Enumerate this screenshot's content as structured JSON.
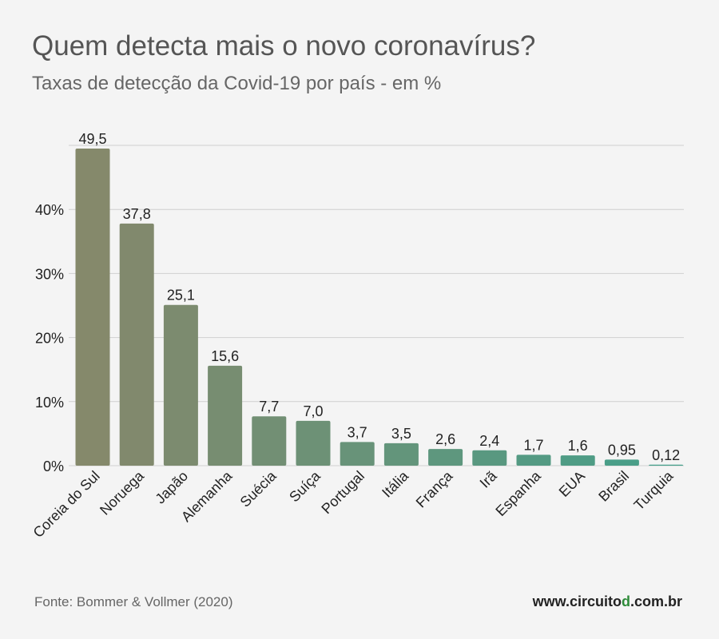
{
  "header": {
    "title": "Quem detecta mais o novo coronavírus?",
    "subtitle": "Taxas de detecção da Covid-19 por país - em %"
  },
  "footer": {
    "source": "Fonte: Bommer & Vollmer (2020)",
    "site_prefix": "www.circuito",
    "site_accent": "d",
    "site_suffix": ".com.br",
    "accent_color": "#2e8b3a"
  },
  "chart_data": {
    "type": "bar",
    "title": "Quem detecta mais o novo coronavírus?",
    "subtitle": "Taxas de detecção da Covid-19 por país - em %",
    "xlabel": "",
    "ylabel": "",
    "ylim": [
      0,
      50
    ],
    "yticks": [
      0,
      10,
      20,
      30,
      40,
      50
    ],
    "ytick_labels": [
      "0%",
      "10%",
      "20%",
      "30%",
      "40%",
      ""
    ],
    "grid": true,
    "categories": [
      "Coreia do Sul",
      "Noruega",
      "Japão",
      "Alemanha",
      "Suécia",
      "Suíça",
      "Portugal",
      "Itália",
      "França",
      "Irã",
      "Espanha",
      "EUA",
      "Brasil",
      "Turquia"
    ],
    "values": [
      49.5,
      37.8,
      25.1,
      15.6,
      7.7,
      7.0,
      3.7,
      3.5,
      2.6,
      2.4,
      1.7,
      1.6,
      0.95,
      0.12
    ],
    "value_labels": [
      "49,5",
      "37,8",
      "25,1",
      "15,6",
      "7,7",
      "7,0",
      "3,7",
      "3,5",
      "2,6",
      "2,4",
      "1,7",
      "1,6",
      "0,95",
      "0,12"
    ],
    "colors": [
      "#85896b",
      "#81896d",
      "#7c8b6f",
      "#778d71",
      "#728f74",
      "#6d9176",
      "#689379",
      "#63957b",
      "#5e977e",
      "#599880",
      "#549a83",
      "#4f9c85",
      "#4a9e88",
      "#45a08a"
    ],
    "grid_color": "#cfcfcf",
    "text_color": "#222222"
  }
}
